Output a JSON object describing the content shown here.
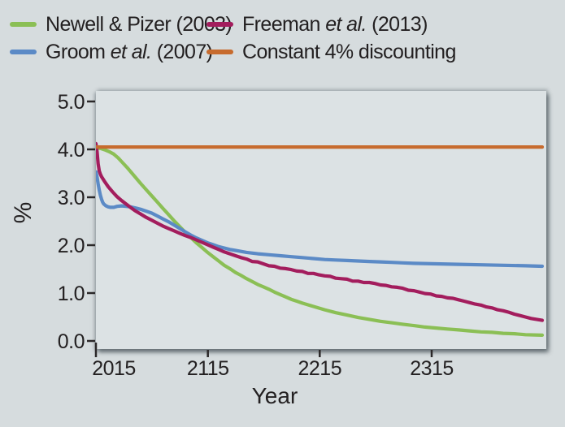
{
  "legend": {
    "items": [
      {
        "id": "newell-pizer",
        "pre": "Newell & Pizer (2003)",
        "italic": "",
        "post": "",
        "color": "#8bbf55"
      },
      {
        "id": "groom",
        "pre": "Groom ",
        "italic": "et al.",
        "post": " (2007)",
        "color": "#5b8ac6"
      },
      {
        "id": "freeman",
        "pre": "Freeman ",
        "italic": "et al.",
        "post": " (2013)",
        "color": "#a31d5d"
      },
      {
        "id": "constant",
        "pre": "Constant 4% discounting",
        "italic": "",
        "post": "",
        "color": "#c76b2e"
      }
    ]
  },
  "chart_data": {
    "type": "line",
    "title": "",
    "xlabel": "Year",
    "ylabel": "%",
    "xlim": [
      2015,
      2415
    ],
    "ylim": [
      0.0,
      5.0
    ],
    "xticks": [
      2015,
      2115,
      2215,
      2315
    ],
    "xtick_labels": [
      "2015",
      "2115",
      "2215",
      "2315"
    ],
    "yticks": [
      0.0,
      1.0,
      2.0,
      3.0,
      4.0,
      5.0
    ],
    "ytick_labels": [
      "0.0",
      "1.0",
      "2.0",
      "3.0",
      "4.0",
      "5.0"
    ],
    "grid": false,
    "legend_position": "top",
    "series": [
      {
        "name": "Newell & Pizer (2003)",
        "color": "#8bbf55",
        "points": [
          [
            2015,
            4.03
          ],
          [
            2019,
            4.02
          ],
          [
            2023,
            3.99
          ],
          [
            2027,
            3.95
          ],
          [
            2031,
            3.9
          ],
          [
            2035,
            3.82
          ],
          [
            2039,
            3.72
          ],
          [
            2043,
            3.62
          ],
          [
            2047,
            3.51
          ],
          [
            2051,
            3.4
          ],
          [
            2055,
            3.29
          ],
          [
            2060,
            3.16
          ],
          [
            2065,
            3.03
          ],
          [
            2070,
            2.9
          ],
          [
            2075,
            2.77
          ],
          [
            2080,
            2.64
          ],
          [
            2085,
            2.51
          ],
          [
            2090,
            2.39
          ],
          [
            2095,
            2.27
          ],
          [
            2100,
            2.16
          ],
          [
            2105,
            2.05
          ],
          [
            2110,
            1.95
          ],
          [
            2115,
            1.85
          ],
          [
            2120,
            1.76
          ],
          [
            2125,
            1.67
          ],
          [
            2130,
            1.58
          ],
          [
            2135,
            1.51
          ],
          [
            2140,
            1.43
          ],
          [
            2145,
            1.37
          ],
          [
            2150,
            1.3
          ],
          [
            2155,
            1.24
          ],
          [
            2160,
            1.18
          ],
          [
            2165,
            1.13
          ],
          [
            2170,
            1.08
          ],
          [
            2175,
            1.02
          ],
          [
            2180,
            0.97
          ],
          [
            2185,
            0.92
          ],
          [
            2190,
            0.87
          ],
          [
            2195,
            0.83
          ],
          [
            2200,
            0.79
          ],
          [
            2210,
            0.72
          ],
          [
            2220,
            0.65
          ],
          [
            2230,
            0.59
          ],
          [
            2240,
            0.54
          ],
          [
            2250,
            0.49
          ],
          [
            2260,
            0.45
          ],
          [
            2270,
            0.41
          ],
          [
            2280,
            0.38
          ],
          [
            2290,
            0.35
          ],
          [
            2300,
            0.32
          ],
          [
            2310,
            0.29
          ],
          [
            2320,
            0.27
          ],
          [
            2330,
            0.25
          ],
          [
            2340,
            0.23
          ],
          [
            2350,
            0.21
          ],
          [
            2360,
            0.19
          ],
          [
            2370,
            0.18
          ],
          [
            2380,
            0.16
          ],
          [
            2390,
            0.15
          ],
          [
            2400,
            0.13
          ],
          [
            2415,
            0.12
          ]
        ]
      },
      {
        "name": "Groom et al. (2007)",
        "color": "#5b8ac6",
        "points": [
          [
            2015,
            3.53
          ],
          [
            2016,
            3.42
          ],
          [
            2017,
            3.28
          ],
          [
            2018,
            3.15
          ],
          [
            2019,
            3.04
          ],
          [
            2020,
            2.96
          ],
          [
            2021,
            2.9
          ],
          [
            2022,
            2.86
          ],
          [
            2024,
            2.82
          ],
          [
            2026,
            2.8
          ],
          [
            2028,
            2.79
          ],
          [
            2031,
            2.79
          ],
          [
            2034,
            2.81
          ],
          [
            2038,
            2.82
          ],
          [
            2042,
            2.81
          ],
          [
            2046,
            2.8
          ],
          [
            2050,
            2.78
          ],
          [
            2055,
            2.75
          ],
          [
            2060,
            2.71
          ],
          [
            2065,
            2.67
          ],
          [
            2070,
            2.61
          ],
          [
            2075,
            2.55
          ],
          [
            2080,
            2.49
          ],
          [
            2085,
            2.42
          ],
          [
            2090,
            2.35
          ],
          [
            2095,
            2.28
          ],
          [
            2100,
            2.21
          ],
          [
            2105,
            2.15
          ],
          [
            2110,
            2.1
          ],
          [
            2115,
            2.05
          ],
          [
            2120,
            2.01
          ],
          [
            2125,
            1.97
          ],
          [
            2130,
            1.94
          ],
          [
            2135,
            1.91
          ],
          [
            2140,
            1.89
          ],
          [
            2145,
            1.87
          ],
          [
            2150,
            1.85
          ],
          [
            2160,
            1.82
          ],
          [
            2170,
            1.8
          ],
          [
            2180,
            1.78
          ],
          [
            2190,
            1.76
          ],
          [
            2200,
            1.74
          ],
          [
            2210,
            1.72
          ],
          [
            2220,
            1.7
          ],
          [
            2230,
            1.69
          ],
          [
            2240,
            1.68
          ],
          [
            2250,
            1.67
          ],
          [
            2260,
            1.66
          ],
          [
            2270,
            1.65
          ],
          [
            2280,
            1.64
          ],
          [
            2290,
            1.63
          ],
          [
            2300,
            1.62
          ],
          [
            2320,
            1.61
          ],
          [
            2340,
            1.6
          ],
          [
            2360,
            1.59
          ],
          [
            2380,
            1.58
          ],
          [
            2400,
            1.57
          ],
          [
            2415,
            1.56
          ]
        ]
      },
      {
        "name": "Freeman et al. (2013)",
        "color": "#a31d5d",
        "points": [
          [
            2015,
            4.12
          ],
          [
            2016,
            3.95
          ],
          [
            2017,
            3.7
          ],
          [
            2018,
            3.55
          ],
          [
            2019,
            3.48
          ],
          [
            2020,
            3.43
          ],
          [
            2023,
            3.32
          ],
          [
            2026,
            3.22
          ],
          [
            2030,
            3.11
          ],
          [
            2034,
            3.01
          ],
          [
            2038,
            2.93
          ],
          [
            2042,
            2.86
          ],
          [
            2046,
            2.79
          ],
          [
            2050,
            2.72
          ],
          [
            2055,
            2.65
          ],
          [
            2060,
            2.58
          ],
          [
            2065,
            2.52
          ],
          [
            2070,
            2.46
          ],
          [
            2075,
            2.4
          ],
          [
            2080,
            2.35
          ],
          [
            2085,
            2.3
          ],
          [
            2090,
            2.25
          ],
          [
            2095,
            2.2
          ],
          [
            2100,
            2.16
          ],
          [
            2105,
            2.11
          ],
          [
            2110,
            2.06
          ],
          [
            2115,
            2.01
          ],
          [
            2120,
            1.96
          ],
          [
            2125,
            1.91
          ],
          [
            2130,
            1.86
          ],
          [
            2135,
            1.82
          ],
          [
            2140,
            1.78
          ],
          [
            2145,
            1.74
          ],
          [
            2150,
            1.71
          ],
          [
            2155,
            1.66
          ],
          [
            2160,
            1.65
          ],
          [
            2165,
            1.61
          ],
          [
            2170,
            1.57
          ],
          [
            2175,
            1.56
          ],
          [
            2180,
            1.52
          ],
          [
            2185,
            1.51
          ],
          [
            2190,
            1.49
          ],
          [
            2195,
            1.46
          ],
          [
            2200,
            1.45
          ],
          [
            2205,
            1.41
          ],
          [
            2210,
            1.41
          ],
          [
            2215,
            1.38
          ],
          [
            2220,
            1.36
          ],
          [
            2225,
            1.35
          ],
          [
            2230,
            1.31
          ],
          [
            2235,
            1.3
          ],
          [
            2240,
            1.29
          ],
          [
            2245,
            1.25
          ],
          [
            2250,
            1.25
          ],
          [
            2255,
            1.22
          ],
          [
            2260,
            1.22
          ],
          [
            2265,
            1.2
          ],
          [
            2270,
            1.17
          ],
          [
            2275,
            1.16
          ],
          [
            2280,
            1.13
          ],
          [
            2285,
            1.12
          ],
          [
            2290,
            1.1
          ],
          [
            2295,
            1.06
          ],
          [
            2300,
            1.05
          ],
          [
            2305,
            1.02
          ],
          [
            2310,
            0.99
          ],
          [
            2315,
            0.98
          ],
          [
            2320,
            0.94
          ],
          [
            2325,
            0.93
          ],
          [
            2330,
            0.9
          ],
          [
            2335,
            0.89
          ],
          [
            2340,
            0.86
          ],
          [
            2345,
            0.83
          ],
          [
            2350,
            0.8
          ],
          [
            2355,
            0.77
          ],
          [
            2360,
            0.75
          ],
          [
            2365,
            0.71
          ],
          [
            2370,
            0.69
          ],
          [
            2375,
            0.65
          ],
          [
            2380,
            0.63
          ],
          [
            2385,
            0.6
          ],
          [
            2390,
            0.56
          ],
          [
            2395,
            0.53
          ],
          [
            2400,
            0.5
          ],
          [
            2405,
            0.47
          ],
          [
            2410,
            0.45
          ],
          [
            2415,
            0.43
          ]
        ]
      },
      {
        "name": "Constant 4% discounting",
        "color": "#c76b2e",
        "points": [
          [
            2015,
            4.05
          ],
          [
            2415,
            4.05
          ]
        ]
      }
    ]
  }
}
